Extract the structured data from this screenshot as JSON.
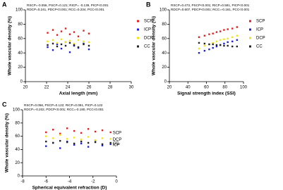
{
  "chart_data": [
    {
      "type": "scatter",
      "panel": "A",
      "annotations": [
        "RSCP=-0.056, PSCP=0.121;  RICP= -0.139, PICP<0.001",
        "RDCP=0.241, PDCP<0.001;  RCC=0.234, PCC<0.001"
      ],
      "x_label": "Axial length (mm)",
      "y_label": "Whole vascular density (%)",
      "xlim": [
        20,
        30
      ],
      "xticks": [
        20,
        22,
        24,
        26,
        28,
        30
      ],
      "ylim": [
        0,
        100
      ],
      "yticks": [
        0,
        20,
        40,
        60,
        80,
        100
      ],
      "legend": "right",
      "series": [
        {
          "name": "SCP",
          "color": "#e02020",
          "x": [
            22.1,
            22.6,
            23.0,
            23.4,
            23.8,
            24.2,
            24.6,
            25.0,
            25.5,
            26.0
          ],
          "y": [
            68,
            72,
            65,
            70,
            74,
            66,
            69,
            63,
            71,
            67
          ]
        },
        {
          "name": "ICP",
          "color": "#2020d0",
          "x": [
            22.1,
            22.6,
            23.0,
            23.4,
            23.8,
            24.2,
            24.6,
            25.0,
            25.5,
            26.0
          ],
          "y": [
            48,
            44,
            52,
            46,
            55,
            41,
            50,
            47,
            53,
            45
          ]
        },
        {
          "name": "DCP",
          "color": "#f2e21a",
          "x": [
            22.1,
            22.6,
            23.0,
            23.4,
            23.8,
            24.2,
            24.6,
            25.0,
            25.5,
            26.0
          ],
          "y": [
            56,
            58,
            54,
            59,
            55,
            57,
            53,
            58,
            56,
            55
          ]
        },
        {
          "name": "CC",
          "color": "#222222",
          "x": [
            22.1,
            22.6,
            23.0,
            23.4,
            23.8,
            24.2,
            24.6,
            25.0,
            25.5,
            26.0
          ],
          "y": [
            51,
            53,
            49,
            52,
            50,
            54,
            51,
            48,
            52,
            50
          ]
        }
      ]
    },
    {
      "type": "scatter",
      "panel": "B",
      "annotations": [
        "RSCP=0.473, PSCP<0.001;  RICP=0.591, PICP<0.001",
        "RDCP=0.607, PDCP<0.001;  RCC=-0.161, PCC<0.001"
      ],
      "x_label": "Signal strength index (SSI)",
      "y_label": "Whole vascular density (%)",
      "xlim": [
        20,
        100
      ],
      "xticks": [
        20,
        40,
        60,
        80,
        100
      ],
      "ylim": [
        0,
        100
      ],
      "yticks": [
        0,
        20,
        40,
        60,
        80,
        100
      ],
      "legend": "right",
      "series": [
        {
          "name": "SCP",
          "color": "#e02020",
          "x": [
            52,
            58,
            63,
            67,
            71,
            75,
            79,
            83,
            88,
            93
          ],
          "y": [
            62,
            64,
            66,
            67,
            69,
            70,
            72,
            73,
            74,
            76
          ]
        },
        {
          "name": "ICP",
          "color": "#2020d0",
          "x": [
            52,
            58,
            63,
            67,
            71,
            75,
            79,
            83,
            88,
            93
          ],
          "y": [
            40,
            43,
            45,
            47,
            49,
            51,
            53,
            55,
            56,
            58
          ]
        },
        {
          "name": "DCP",
          "color": "#f2e21a",
          "x": [
            52,
            58,
            63,
            67,
            71,
            75,
            79,
            83,
            88,
            93
          ],
          "y": [
            46,
            50,
            52,
            54,
            56,
            58,
            59,
            60,
            62,
            64
          ]
        },
        {
          "name": "CC",
          "color": "#222222",
          "x": [
            52,
            58,
            63,
            67,
            71,
            75,
            79,
            83,
            88,
            93
          ],
          "y": [
            54,
            53,
            52,
            52,
            51,
            51,
            50,
            50,
            49,
            49
          ]
        }
      ]
    },
    {
      "type": "scatter",
      "panel": "C",
      "annotations": [
        "RSCP=0.056, PSCP=0.122;  RICP=0.091, PICP=0.122",
        "RDCP=-0.202, PDCP<0.001;  RCC=-0.180, PCC<0.001"
      ],
      "x_label": "Spherical equivalent refraction (D)",
      "y_label": "Whole vascular density (%)",
      "xlim": [
        -8,
        0
      ],
      "xticks": [
        -8,
        -6,
        -4,
        -2,
        0
      ],
      "ylim": [
        0,
        100
      ],
      "yticks": [
        0,
        20,
        40,
        60,
        80,
        100
      ],
      "legend": "inline",
      "series": [
        {
          "name": "SCP",
          "color": "#e02020",
          "x": [
            -6,
            -5.4,
            -4.8,
            -4.2,
            -3.6,
            -3,
            -2.4,
            -1.8,
            -1.2,
            -0.5
          ],
          "y": [
            66,
            70,
            64,
            72,
            68,
            65,
            71,
            67,
            69,
            66
          ]
        },
        {
          "name": "ICP",
          "color": "#2020d0",
          "x": [
            -6,
            -5.4,
            -4.8,
            -4.2,
            -3.6,
            -3,
            -2.4,
            -1.8,
            -1.2,
            -0.5
          ],
          "y": [
            45,
            50,
            42,
            52,
            47,
            49,
            44,
            53,
            46,
            48
          ]
        },
        {
          "name": "DCP",
          "color": "#f2e21a",
          "x": [
            -6,
            -5.4,
            -4.8,
            -4.2,
            -3.6,
            -3,
            -2.4,
            -1.8,
            -1.2,
            -0.5
          ],
          "y": [
            60,
            57,
            62,
            56,
            58,
            55,
            59,
            54,
            57,
            56
          ]
        },
        {
          "name": "CC",
          "color": "#222222",
          "x": [
            -6,
            -5.4,
            -4.8,
            -4.2,
            -3.6,
            -3,
            -2.4,
            -1.8,
            -1.2,
            -0.5
          ],
          "y": [
            52,
            50,
            53,
            51,
            49,
            52,
            50,
            51,
            48,
            50
          ]
        }
      ]
    }
  ]
}
